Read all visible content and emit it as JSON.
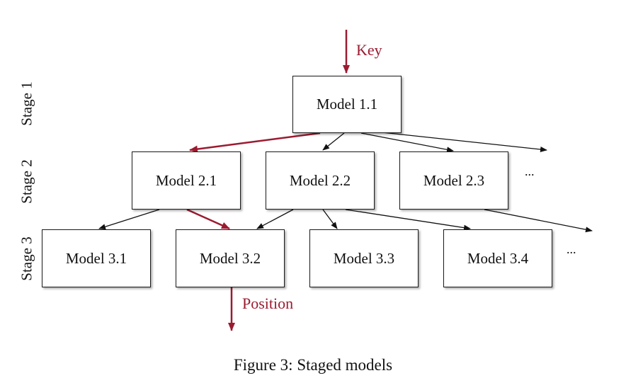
{
  "stages": [
    "Stage 1",
    "Stage 2",
    "Stage 3"
  ],
  "models": {
    "m11": "Model 1.1",
    "m21": "Model 2.1",
    "m22": "Model 2.2",
    "m23": "Model 2.3",
    "m31": "Model 3.1",
    "m32": "Model 3.2",
    "m33": "Model 3.3",
    "m34": "Model 3.4"
  },
  "labels": {
    "key": "Key",
    "position": "Position",
    "more": "..."
  },
  "caption": "Figure 3: Staged models",
  "colors": {
    "highlight": "#9b1b30",
    "arrow": "#111111"
  }
}
